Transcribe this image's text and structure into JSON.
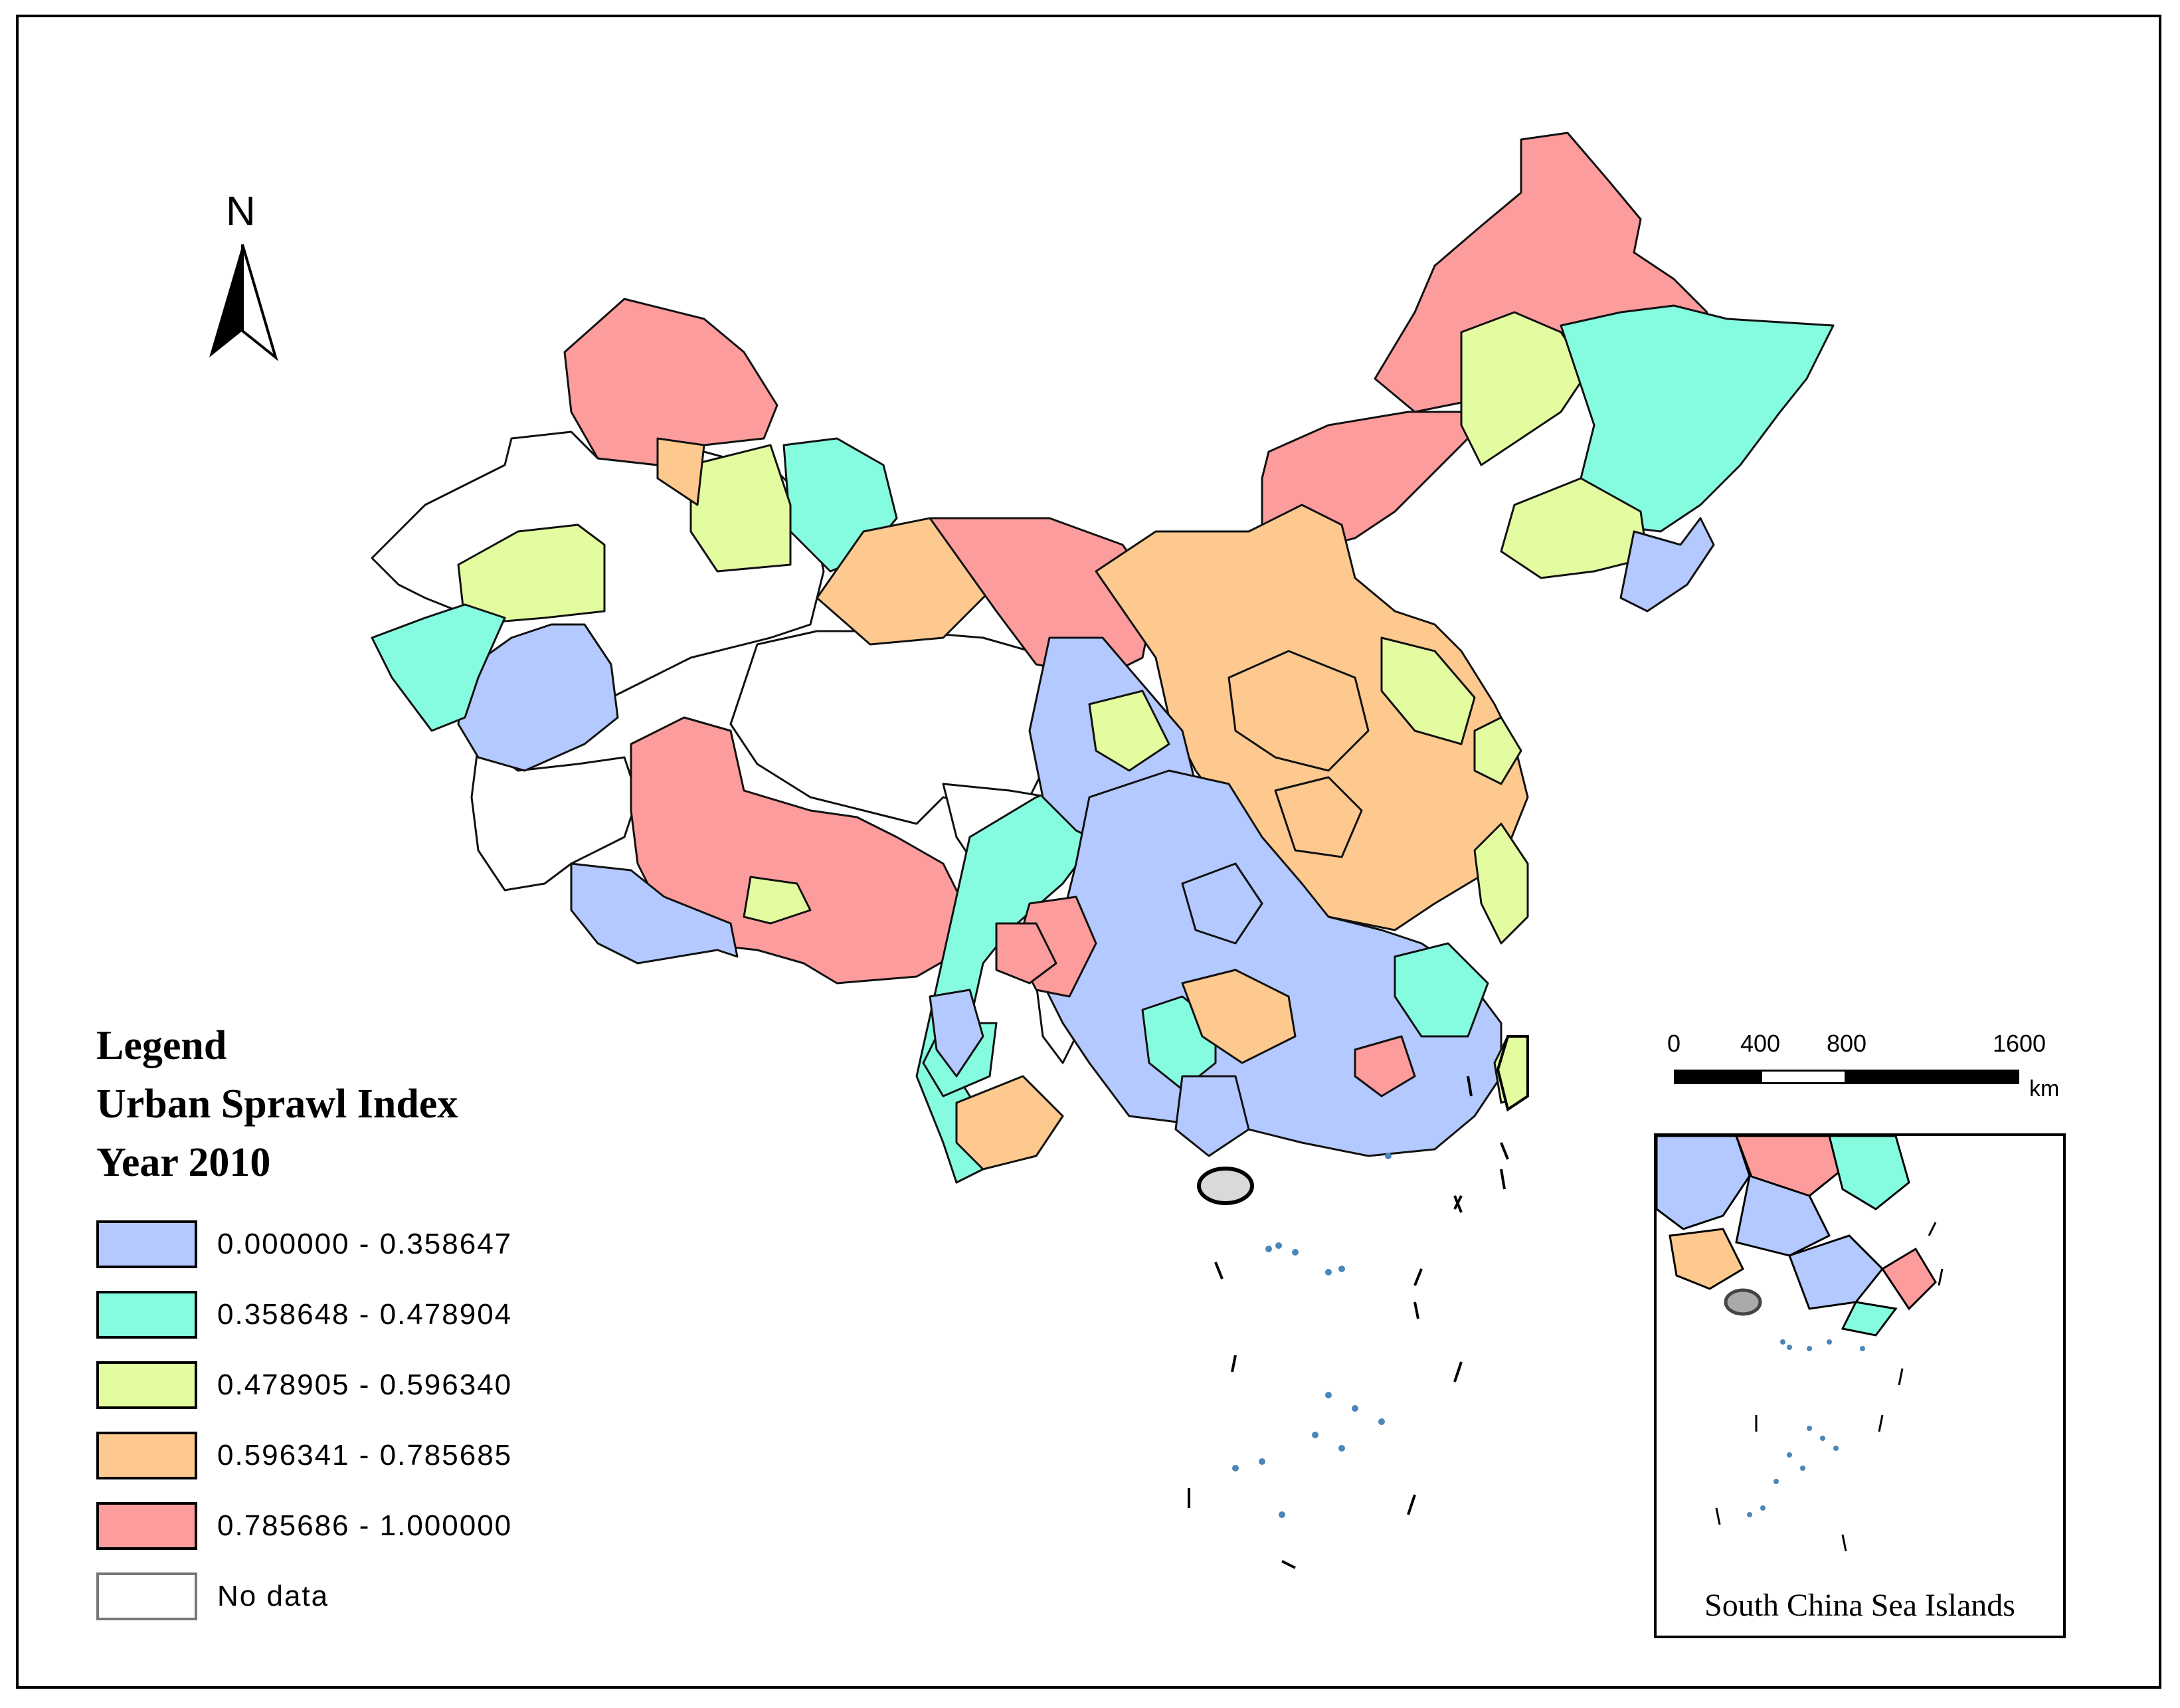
{
  "legend": {
    "heading": "Legend",
    "title": "Urban Sprawl Index",
    "subtitle": "Year 2010",
    "classes": [
      {
        "label": "0.000000 - 0.358647",
        "color": "#b3c9ff"
      },
      {
        "label": "0.358648 - 0.478904",
        "color": "#85fce0"
      },
      {
        "label": "0.478905 - 0.596340",
        "color": "#e3fca0"
      },
      {
        "label": "0.596341 - 0.785685",
        "color": "#fdc98f"
      },
      {
        "label": "0.785686 - 1.000000",
        "color": "#fd9c9c"
      },
      {
        "label": "No data",
        "color": "#ffffff"
      }
    ]
  },
  "north_arrow": {
    "label": "N"
  },
  "scale_bar": {
    "ticks": [
      "0",
      "400",
      "800",
      "1600"
    ],
    "unit": "km"
  },
  "inset": {
    "caption": "South China Sea Islands"
  }
}
